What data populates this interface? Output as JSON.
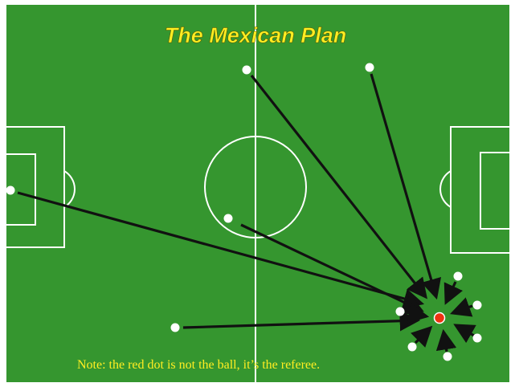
{
  "title": "The Mexican Plan",
  "note": "Note: the red dot is not the ball, it’s the referee.",
  "colors": {
    "pitch": "#35962f",
    "lines": "#ffffff",
    "title": "#ffee22",
    "note": "#ffee22",
    "player": "#ffffff",
    "referee": "#ee3311",
    "arrow": "#111111"
  },
  "icons": {
    "player": "white-dot",
    "referee": "red-dot",
    "arrow": "arrow"
  }
}
